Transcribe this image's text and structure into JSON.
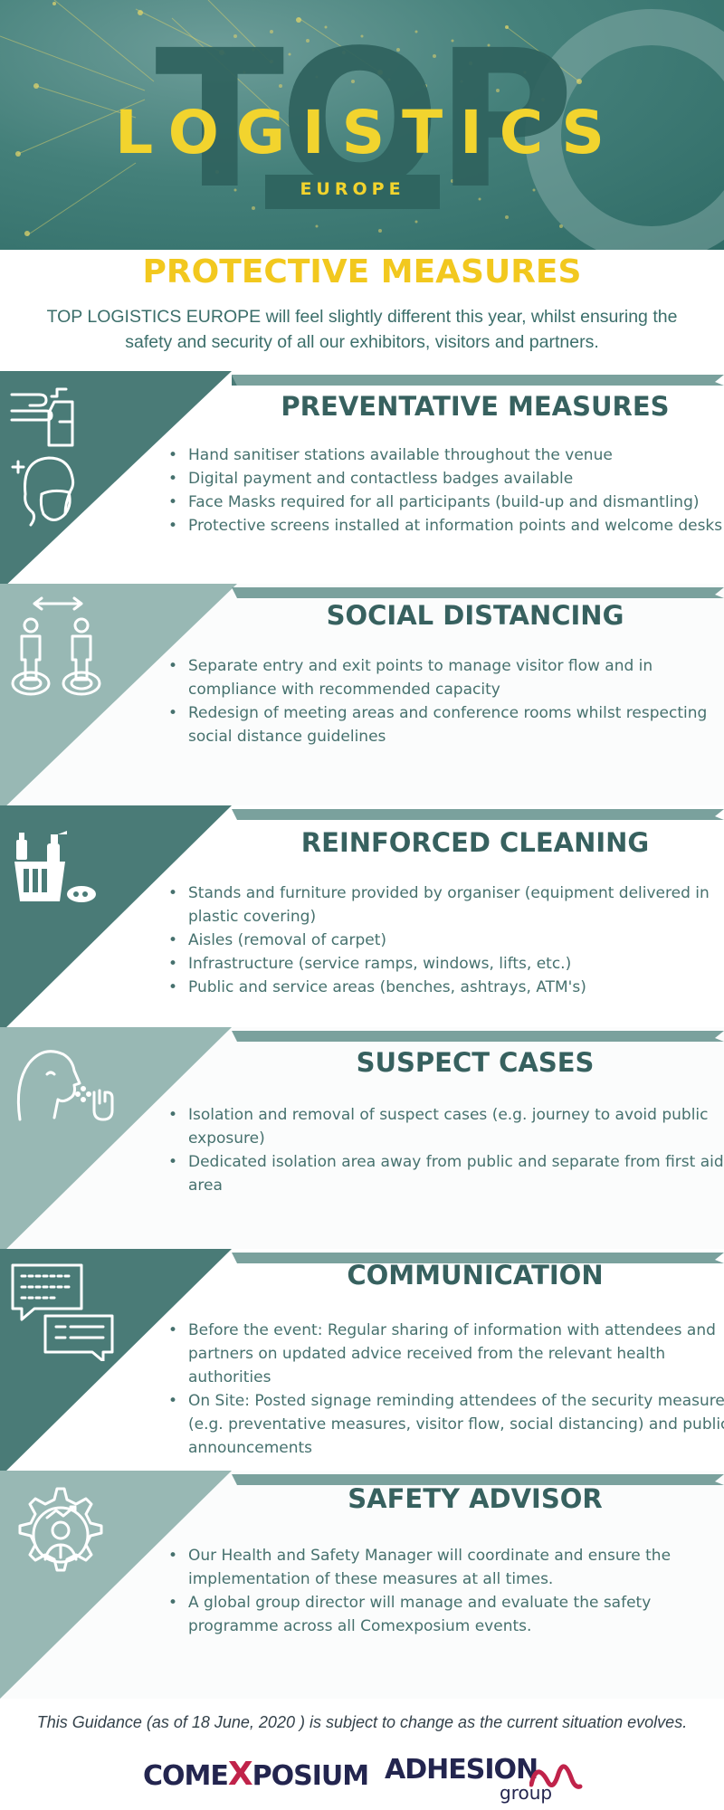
{
  "header": {
    "big_word": "TOP",
    "logistics": "LOGISTICS",
    "europe": "EUROPE"
  },
  "intro": {
    "title": "PROTECTIVE MEASURES",
    "text": "TOP LOGISTICS EUROPE  will feel slightly different this year, whilst ensuring the safety and security of all our exhibitors, visitors and partners."
  },
  "colors": {
    "dark_teal": "#4a7b77",
    "light_teal": "#98b8b4",
    "title_yellow": "#f2c81e",
    "heading_teal": "#37615f"
  },
  "sections": [
    {
      "title": "PREVENTATIVE MEASURES",
      "icon": "hand-sanitizer-and-mask-icon",
      "items": [
        "Hand sanitiser stations available throughout the venue",
        "Digital payment and contactless badges available",
        "Face Masks required for all participants (build-up and dismantling)",
        "Protective screens installed at information points and welcome desks"
      ]
    },
    {
      "title": "SOCIAL DISTANCING",
      "icon": "social-distancing-icon",
      "items": [
        "Separate entry and exit points to manage visitor flow and in compliance with recommended capacity",
        "Redesign of meeting areas and conference rooms whilst respecting social distance guidelines"
      ]
    },
    {
      "title": "REINFORCED CLEANING",
      "icon": "cleaning-supplies-icon",
      "items": [
        "Stands and furniture provided by organiser (equipment delivered in plastic covering)",
        "Aisles (removal of carpet)",
        "Infrastructure (service ramps, windows, lifts, etc.)",
        "Public and service areas (benches, ashtrays, ATM's)"
      ]
    },
    {
      "title": "SUSPECT CASES",
      "icon": "coughing-person-icon",
      "items": [
        "Isolation and removal of suspect cases (e.g. journey to avoid public exposure)",
        "Dedicated isolation area away from public and separate from first aid area"
      ]
    },
    {
      "title": "COMMUNICATION",
      "icon": "chat-bubbles-icon",
      "items": [
        "Before the event: Regular sharing of information with attendees and partners on updated advice received from the relevant health authorities",
        "On Site: Posted signage reminding attendees of the security measures (e.g. preventative measures, visitor flow, social distancing) and public announcements"
      ]
    },
    {
      "title": "SAFETY ADVISOR",
      "icon": "gear-with-person-icon",
      "items": [
        "Our Health and Safety Manager will coordinate and ensure the implementation of these measures at all times.",
        "A global group director will manage and evaluate the safety programme across all Comexposium events."
      ]
    }
  ],
  "footer": {
    "note": "This Guidance (as of 18 June, 2020 ) is subject to change as the current situation evolves.",
    "logo1_a": "COME",
    "logo1_x": "X",
    "logo1_b": "POSIUM",
    "logo2": "ADHESION",
    "logo2_sub": "group"
  }
}
